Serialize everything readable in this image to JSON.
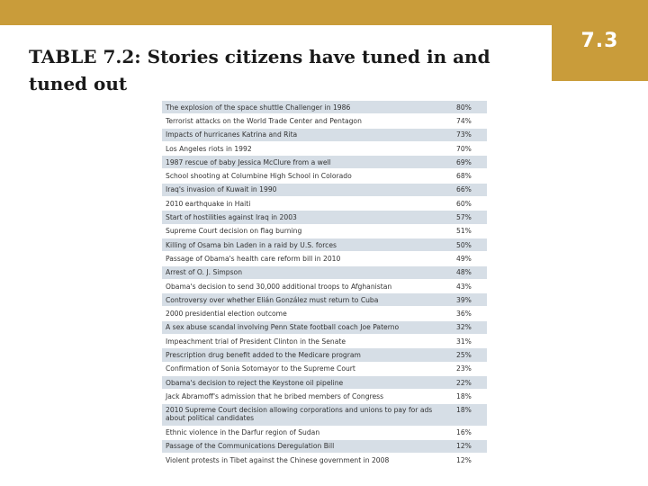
{
  "badge": "7.3",
  "title": "TABLE 7.2: Stories citizens have tuned in and tuned out",
  "colors": {
    "accent": "#c99c3a",
    "row_shade": "#d6dee6"
  },
  "table": {
    "rows": [
      {
        "story": "The explosion of the space shuttle Challenger in 1986",
        "pct": "80%"
      },
      {
        "story": "Terrorist attacks on the World Trade Center and Pentagon",
        "pct": "74%"
      },
      {
        "story": "Impacts of hurricanes Katrina and Rita",
        "pct": "73%"
      },
      {
        "story": "Los Angeles riots in 1992",
        "pct": "70%"
      },
      {
        "story": "1987 rescue of baby Jessica McClure from a well",
        "pct": "69%"
      },
      {
        "story": "School shooting at Columbine High School in Colorado",
        "pct": "68%"
      },
      {
        "story": "Iraq's invasion of Kuwait in 1990",
        "pct": "66%"
      },
      {
        "story": "2010 earthquake in Haiti",
        "pct": "60%"
      },
      {
        "story": "Start of hostilities against Iraq in 2003",
        "pct": "57%"
      },
      {
        "story": "Supreme Court decision on flag burning",
        "pct": "51%"
      },
      {
        "story": "Killing of Osama bin Laden in a raid by U.S. forces",
        "pct": "50%"
      },
      {
        "story": "Passage of Obama's health care reform bill in 2010",
        "pct": "49%"
      },
      {
        "story": "Arrest of O. J. Simpson",
        "pct": "48%"
      },
      {
        "story": "Obama's decision to send 30,000 additional troops to Afghanistan",
        "pct": "43%"
      },
      {
        "story": "Controversy over whether Elián González must return to Cuba",
        "pct": "39%"
      },
      {
        "story": "2000 presidential election outcome",
        "pct": "36%"
      },
      {
        "story": "A sex abuse scandal involving Penn State football coach Joe Paterno",
        "pct": "32%"
      },
      {
        "story": "Impeachment trial of President Clinton in the Senate",
        "pct": "31%"
      },
      {
        "story": "Prescription drug benefit added to the Medicare program",
        "pct": "25%"
      },
      {
        "story": "Confirmation of Sonia Sotomayor to the Supreme Court",
        "pct": "23%"
      },
      {
        "story": "Obama's decision to reject the Keystone oil pipeline",
        "pct": "22%"
      },
      {
        "story": "Jack Abramoff's admission that he bribed members of Congress",
        "pct": "18%"
      },
      {
        "story": "2010 Supreme Court decision allowing corporations and unions to pay for ads about political candidates",
        "pct": "18%"
      },
      {
        "story": "Ethnic violence in the Darfur region of Sudan",
        "pct": "16%"
      },
      {
        "story": "Passage of the Communications Deregulation Bill",
        "pct": "12%"
      },
      {
        "story": "Violent protests in Tibet against the Chinese government in 2008",
        "pct": "12%"
      }
    ]
  }
}
